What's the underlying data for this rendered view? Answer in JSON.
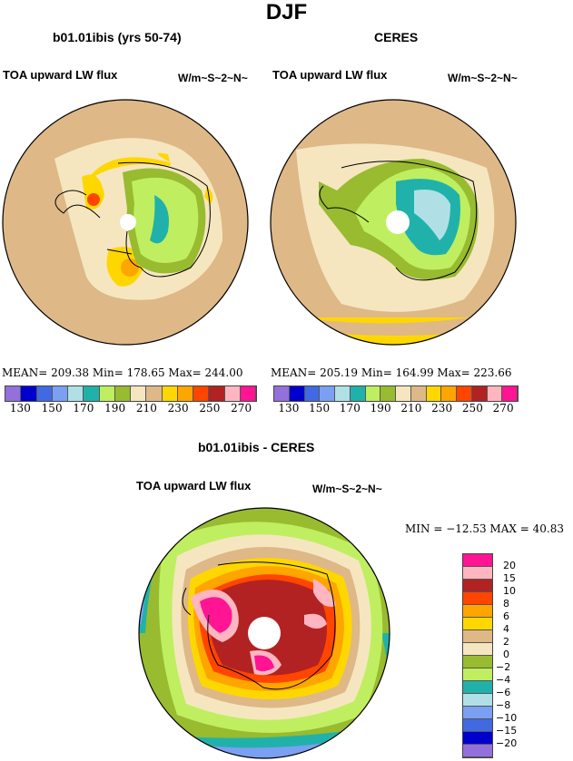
{
  "figure_title": "DJF",
  "palette": [
    "#9370DB",
    "#0000CD",
    "#4169E1",
    "#7B9FF2",
    "#B0E0E6",
    "#20B2AA",
    "#BFEF60",
    "#98BB30",
    "#F5E6C0",
    "#DEB887",
    "#FFD700",
    "#FFA500",
    "#FF4500",
    "#B22222",
    "#FFB6C1",
    "#FF1493"
  ],
  "panels": [
    {
      "title": "b01.01ibis (yrs 50-74)",
      "variable": "TOA upward LW flux",
      "units": "W/m~S~2~N~",
      "stats": "MEAN= 209.38   Min= 178.65   Max= 244.00"
    },
    {
      "title": "CERES",
      "variable": "TOA upward LW flux",
      "units": "W/m~S~2~N~",
      "stats": "MEAN= 205.19   Min= 164.99   Max= 223.66"
    }
  ],
  "colorbar_top": {
    "labels": [
      "130",
      "150",
      "170",
      "190",
      "210",
      "230",
      "250",
      "270"
    ]
  },
  "diff": {
    "title": "b01.01ibis - CERES",
    "variable": "TOA upward LW flux",
    "units": "W/m~S~2~N~",
    "stats": "MIN = −12.53  MAX =  40.83",
    "colorbar_labels": [
      "20",
      "15",
      "10",
      "8",
      "6",
      "4",
      "2",
      "0",
      "−2",
      "−4",
      "−6",
      "−8",
      "−10",
      "−15",
      "−20"
    ]
  }
}
